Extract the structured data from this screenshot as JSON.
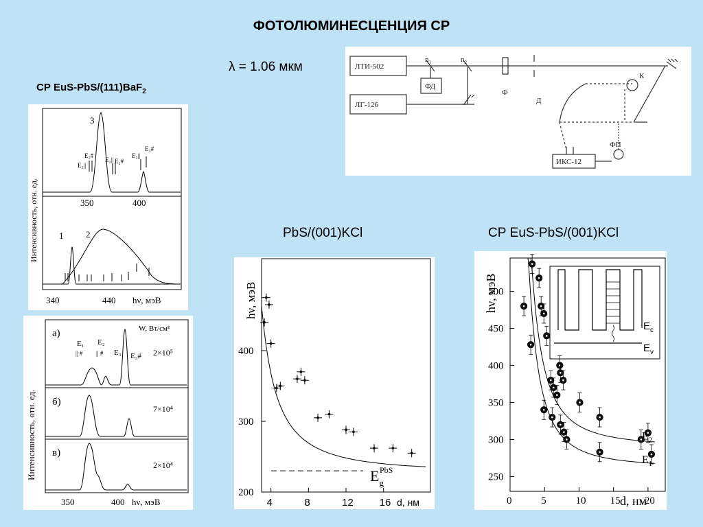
{
  "page": {
    "title": "ФОТОЛЮМИНЕСЦЕНЦИЯ СР",
    "wavelength_label": "λ = 1.06 мкм",
    "left_caption": "СР EuS-PbS/(111)BaF",
    "left_caption_sub": "2",
    "mid_caption": "PbS/(001)KCl",
    "right_caption": "СР EuS-PbS/(001)KCl"
  },
  "setup": {
    "laser1": "ЛТИ-502",
    "laser2": "ЛГ-126",
    "n1": "n",
    "n1_sub": "1",
    "n2": "n",
    "n2_sub": "2",
    "fd": "ФД",
    "f": "Ф",
    "d": "Д",
    "k": "К",
    "fp": "ФП",
    "iks": "ИКС-12"
  },
  "chart_data": [
    {
      "type": "line",
      "ylabel": "Интенсивность, отн. ед.",
      "top": {
        "x_ticks": [
          "350",
          "400"
        ],
        "curve_label": "3",
        "peaks": [
          {
            "x": 370,
            "label": "3"
          },
          {
            "x": 404
          }
        ],
        "annotations": [
          "E₁#",
          "E₁||",
          "E₂||",
          "E₂#",
          "E₃||",
          "E₃#"
        ]
      },
      "bottom": {
        "x_ticks": [
          "340",
          "440"
        ],
        "xlabel": "hν, мэВ",
        "curve_labels": [
          "1",
          "2"
        ]
      }
    },
    {
      "type": "line",
      "ylabel": "Интенсивность, отн. ед.",
      "xlabel": "hν, мэВ",
      "x_ticks": [
        "350",
        "400"
      ],
      "legend_header": "W, Вт/см²",
      "panels": [
        {
          "label": "а)",
          "power": "2×10⁵"
        },
        {
          "label": "б)",
          "power": "7×10⁴"
        },
        {
          "label": "в)",
          "power": "2×10⁴"
        }
      ],
      "annotations": [
        "E₁",
        "E₂",
        "E₃",
        "E₃#",
        "|| #"
      ]
    },
    {
      "type": "scatter",
      "title": "PbS/(001)KCl",
      "xlabel": "d, нм",
      "ylabel": "hν, мэВ",
      "x_ticks": [
        "4",
        "8",
        "12",
        "16"
      ],
      "y_ticks": [
        "200",
        "300",
        "400"
      ],
      "xlim": [
        3,
        21
      ],
      "ylim": [
        200,
        530
      ],
      "reference": {
        "label": "E",
        "sub": "g",
        "sup": "PbS",
        "value": 230
      },
      "points": [
        {
          "x": 3.3,
          "y": 440
        },
        {
          "x": 3.5,
          "y": 475
        },
        {
          "x": 3.8,
          "y": 465
        },
        {
          "x": 4.0,
          "y": 410
        },
        {
          "x": 4.6,
          "y": 347
        },
        {
          "x": 5.0,
          "y": 350
        },
        {
          "x": 6.8,
          "y": 360
        },
        {
          "x": 7.2,
          "y": 370
        },
        {
          "x": 7.6,
          "y": 358
        },
        {
          "x": 9.0,
          "y": 305
        },
        {
          "x": 10.2,
          "y": 310
        },
        {
          "x": 12.0,
          "y": 288
        },
        {
          "x": 12.8,
          "y": 285
        },
        {
          "x": 15.0,
          "y": 262
        },
        {
          "x": 17.0,
          "y": 262
        },
        {
          "x": 19.0,
          "y": 255
        }
      ]
    },
    {
      "type": "scatter",
      "title": "СР EuS-PbS/(001)KCl",
      "xlabel": "d, нм",
      "ylabel": "hν, мэВ",
      "x_ticks": [
        "0",
        "5",
        "10",
        "15",
        "20"
      ],
      "y_ticks": [
        "250",
        "300",
        "350",
        "400",
        "450",
        "500"
      ],
      "xlim": [
        0,
        22.5
      ],
      "ylim": [
        230,
        545
      ],
      "series": [
        {
          "name": "E2",
          "points": [
            [
              3.2,
              537
            ],
            [
              4.2,
              518
            ],
            [
              4.5,
              480
            ],
            [
              4.9,
              470
            ],
            [
              5.3,
              440
            ],
            [
              7.2,
              400
            ],
            [
              7.3,
              390
            ],
            [
              7.7,
              380
            ],
            [
              10.1,
              350
            ],
            [
              13.0,
              330
            ],
            [
              19.0,
              300
            ],
            [
              20.0,
              309
            ]
          ]
        },
        {
          "name": "E1",
          "points": [
            [
              2.0,
              480
            ],
            [
              3.0,
              428
            ],
            [
              4.9,
              340
            ],
            [
              5.9,
              380
            ],
            [
              6.1,
              330
            ],
            [
              6.3,
              370
            ],
            [
              6.8,
              360
            ],
            [
              7.3,
              320
            ],
            [
              7.8,
              310
            ],
            [
              8.2,
              300
            ],
            [
              13.0,
              283
            ],
            [
              20.5,
              280
            ]
          ]
        }
      ],
      "inset": {
        "labels": [
          "E",
          "E"
        ],
        "subs": [
          "c",
          "v"
        ]
      }
    }
  ]
}
